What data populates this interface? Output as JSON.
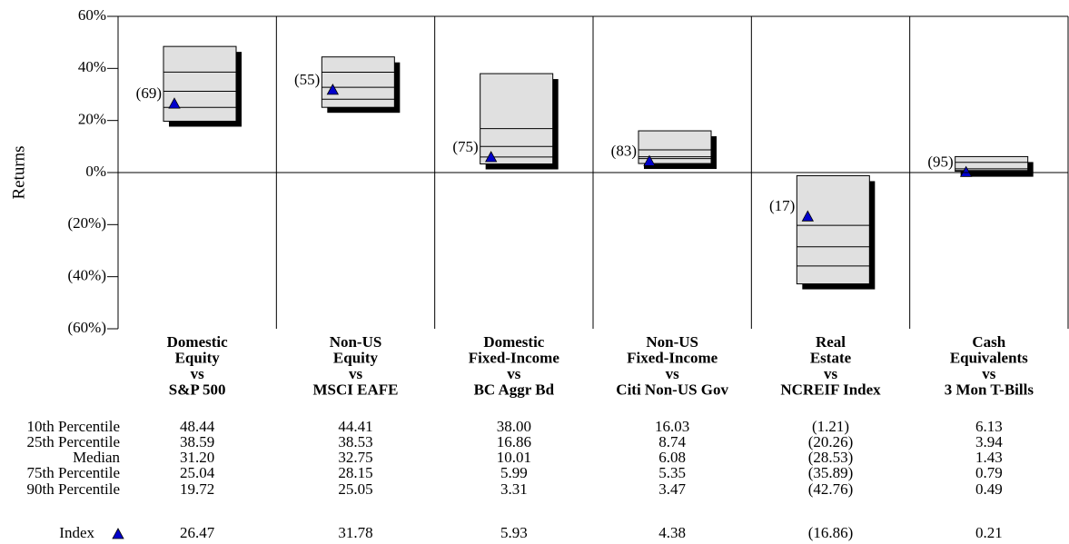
{
  "chart_data": {
    "type": "floating-bar",
    "y_label": "Returns",
    "ylim": [
      -60,
      60
    ],
    "yticks": [
      {
        "value": 60,
        "label": "60%"
      },
      {
        "value": 40,
        "label": "40%"
      },
      {
        "value": 20,
        "label": "20%"
      },
      {
        "value": 0,
        "label": "0%"
      },
      {
        "value": -20,
        "label": "(20%)"
      },
      {
        "value": -40,
        "label": "(40%)"
      },
      {
        "value": -60,
        "label": "(60%)"
      }
    ],
    "negative_color": "#ff0000",
    "box_color": "#e0e0e0",
    "shadow_color": "#000000",
    "categories": [
      [
        "Domestic",
        "Equity",
        "vs",
        "S&P 500"
      ],
      [
        "Non-US",
        "Equity",
        "vs",
        "MSCI EAFE"
      ],
      [
        "Domestic",
        "Fixed-Income",
        "vs",
        "BC Aggr Bd"
      ],
      [
        "Non-US",
        "Fixed-Income",
        "vs",
        "Citi Non-US Gov"
      ],
      [
        "Real",
        "Estate",
        "vs",
        "NCREIF Index"
      ],
      [
        "Cash",
        "Equivalents",
        "vs",
        "3 Mon T-Bills"
      ]
    ],
    "series": [
      {
        "name": "10th Percentile",
        "values": [
          48.44,
          44.41,
          38.0,
          16.03,
          -1.21,
          6.13
        ],
        "value_labels": [
          "48.44",
          "44.41",
          "38.00",
          "16.03",
          "(1.21)",
          "6.13"
        ]
      },
      {
        "name": "25th Percentile",
        "values": [
          38.59,
          38.53,
          16.86,
          8.74,
          -20.26,
          3.94
        ],
        "value_labels": [
          "38.59",
          "38.53",
          "16.86",
          "8.74",
          "(20.26)",
          "3.94"
        ]
      },
      {
        "name": "Median",
        "values": [
          31.2,
          32.75,
          10.01,
          6.08,
          -28.53,
          1.43
        ],
        "value_labels": [
          "31.20",
          "32.75",
          "10.01",
          "6.08",
          "(28.53)",
          "1.43"
        ]
      },
      {
        "name": "75th Percentile",
        "values": [
          25.04,
          28.15,
          5.99,
          5.35,
          -35.89,
          0.79
        ],
        "value_labels": [
          "25.04",
          "28.15",
          "5.99",
          "5.35",
          "(35.89)",
          "0.79"
        ]
      },
      {
        "name": "90th Percentile",
        "values": [
          19.72,
          25.05,
          3.31,
          3.47,
          -42.76,
          0.49
        ],
        "value_labels": [
          "19.72",
          "25.05",
          "3.31",
          "3.47",
          "(42.76)",
          "0.49"
        ]
      },
      {
        "name": "Index",
        "color": "#0000cc",
        "values": [
          26.47,
          31.78,
          5.93,
          4.38,
          -16.86,
          0.21
        ],
        "value_labels": [
          "26.47",
          "31.78",
          "5.93",
          "4.38",
          "(16.86)",
          "0.21"
        ],
        "rank_labels": [
          "(69)",
          "(55)",
          "(75)",
          "(83)",
          "(17)",
          "(95)"
        ]
      }
    ]
  }
}
